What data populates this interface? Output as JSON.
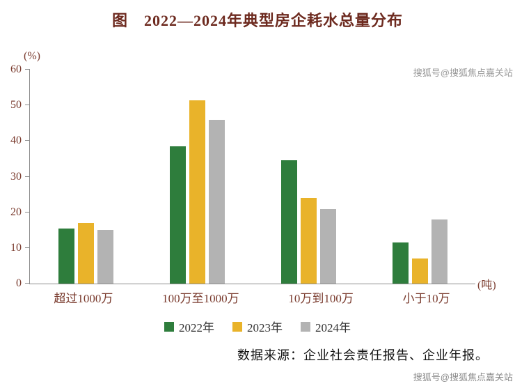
{
  "title": "图　2022—2024年典型房企耗水总量分布",
  "source": "数据来源：企业社会责任报告、企业年报。",
  "watermark_top": "搜狐号@搜狐焦点嘉关站",
  "watermark_bottom": "搜狐号@搜狐焦点嘉关站",
  "chart_data": {
    "type": "bar",
    "grouped": true,
    "title": "图　2022—2024年典型房企耗水总量分布",
    "ylabel": "(%)",
    "x_unit_label": "(吨)",
    "categories": [
      "超过1000万",
      "100万至1000万",
      "10万到100万",
      "小于10万"
    ],
    "series": [
      {
        "name": "2022年",
        "color": "#2e7d3c",
        "values": [
          15.5,
          38.5,
          34.5,
          11.5
        ]
      },
      {
        "name": "2023年",
        "color": "#e9b32a",
        "values": [
          17,
          51.5,
          24,
          7
        ]
      },
      {
        "name": "2024年",
        "color": "#b3b3b3",
        "values": [
          15,
          46,
          21,
          18
        ]
      }
    ],
    "ylim": [
      0,
      60
    ],
    "yticks": [
      0,
      10,
      20,
      30,
      40,
      50,
      60
    ],
    "legend_position": "bottom",
    "grid": false,
    "axis_color": "#8c8c8c"
  }
}
